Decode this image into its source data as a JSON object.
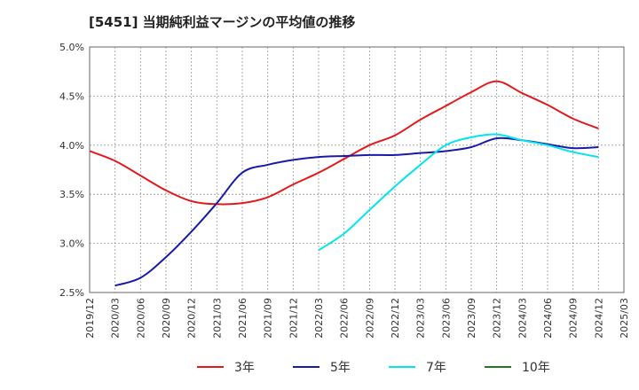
{
  "chart_data": {
    "type": "line",
    "title": "[5451]  当期純利益マージンの平均値の推移",
    "x_tick_labels": [
      "2019/12",
      "2020/03",
      "2020/06",
      "2020/09",
      "2020/12",
      "2021/03",
      "2021/06",
      "2021/09",
      "2021/12",
      "2022/03",
      "2022/06",
      "2022/09",
      "2022/12",
      "2023/03",
      "2023/06",
      "2023/09",
      "2023/12",
      "2024/03",
      "2024/06",
      "2024/09",
      "2024/12",
      "2025/03"
    ],
    "y_tick_labels": [
      "2.5%",
      "3.0%",
      "3.5%",
      "4.0%",
      "4.5%",
      "5.0%"
    ],
    "ylim": [
      2.5,
      5.0
    ],
    "y_unit": "%",
    "grid": true,
    "legend_position": "bottom",
    "series": [
      {
        "name": "3年",
        "color": "#e31a1c",
        "x": [
          "2019/12",
          "2020/03",
          "2020/06",
          "2020/09",
          "2020/12",
          "2021/03",
          "2021/06",
          "2021/09",
          "2021/12",
          "2022/03",
          "2022/06",
          "2022/09",
          "2022/12",
          "2023/03",
          "2023/06",
          "2023/09",
          "2023/12",
          "2024/03",
          "2024/06",
          "2024/09",
          "2024/12"
        ],
        "values": [
          3.94,
          3.84,
          3.69,
          3.54,
          3.43,
          3.4,
          3.41,
          3.47,
          3.6,
          3.72,
          3.86,
          4.0,
          4.1,
          4.26,
          4.4,
          4.54,
          4.65,
          4.53,
          4.41,
          4.27,
          4.17
        ]
      },
      {
        "name": "5年",
        "color": "#1a1aa8",
        "x": [
          "2020/03",
          "2020/06",
          "2020/09",
          "2020/12",
          "2021/03",
          "2021/06",
          "2021/09",
          "2021/12",
          "2022/03",
          "2022/06",
          "2022/09",
          "2022/12",
          "2023/03",
          "2023/06",
          "2023/09",
          "2023/12",
          "2024/03",
          "2024/06",
          "2024/09",
          "2024/12"
        ],
        "values": [
          2.57,
          2.65,
          2.86,
          3.12,
          3.41,
          3.72,
          3.8,
          3.85,
          3.88,
          3.89,
          3.9,
          3.9,
          3.92,
          3.94,
          3.98,
          4.07,
          4.05,
          4.01,
          3.97,
          3.98
        ]
      },
      {
        "name": "7年",
        "color": "#00e5ee",
        "x": [
          "2022/03",
          "2022/06",
          "2022/09",
          "2022/12",
          "2023/03",
          "2023/06",
          "2023/09",
          "2023/12",
          "2024/03",
          "2024/06",
          "2024/09",
          "2024/12"
        ],
        "values": [
          2.93,
          3.1,
          3.34,
          3.58,
          3.8,
          4.0,
          4.08,
          4.11,
          4.05,
          4.0,
          3.93,
          3.88
        ]
      },
      {
        "name": "10年",
        "color": "#1f7a1f",
        "x": [],
        "values": []
      }
    ]
  }
}
